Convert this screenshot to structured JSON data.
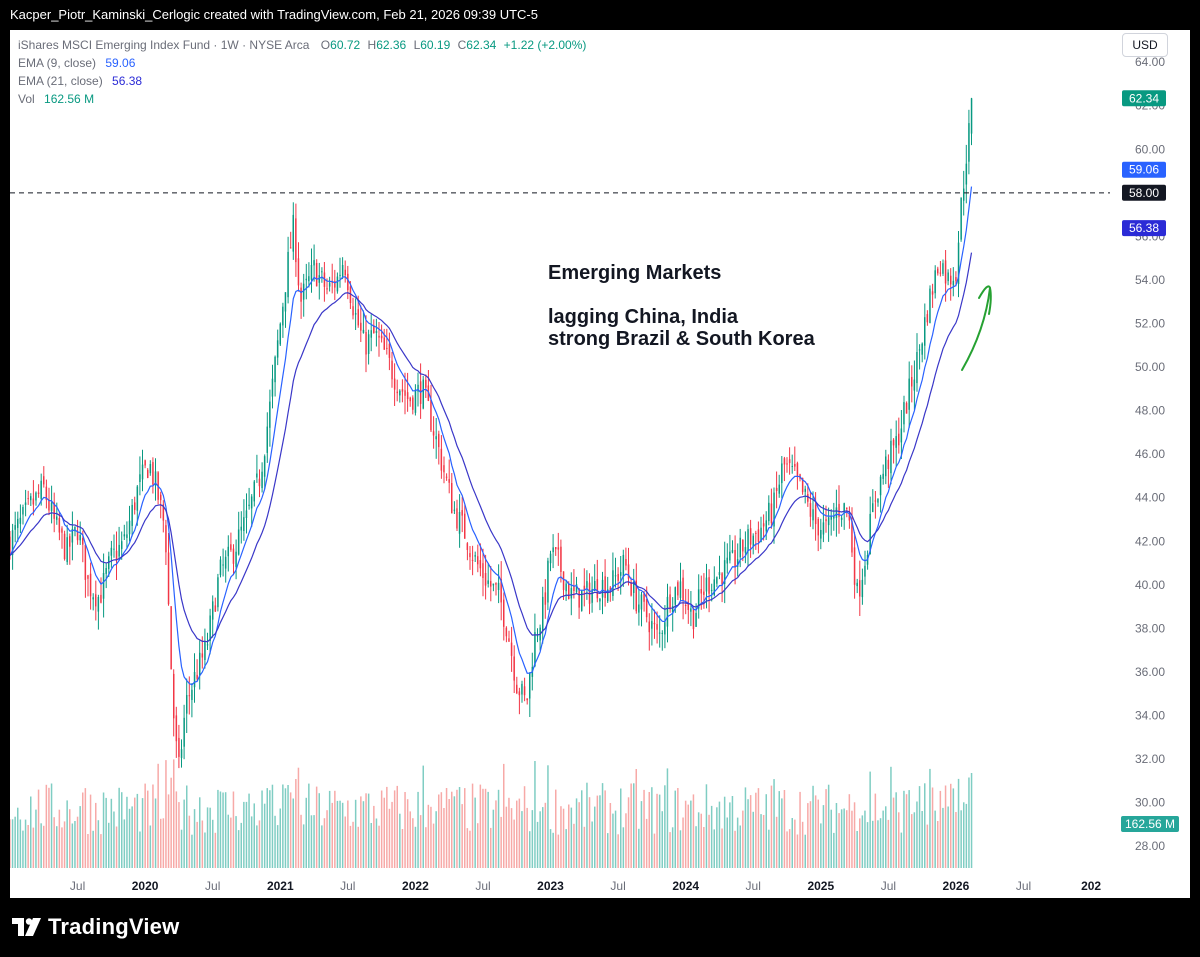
{
  "header": {
    "credit": "Kacper_Piotr_Kaminski_Cerlogic created with TradingView.com, Feb 21, 2026 09:39 UTC-5"
  },
  "legend": {
    "symbol": "iShares MSCI Emerging Index Fund · 1W · NYSE Arca",
    "o_label": "O",
    "o_value": "60.72",
    "h_label": "H",
    "h_value": "62.36",
    "l_label": "L",
    "l_value": "60.19",
    "c_label": "C",
    "c_value": "62.34",
    "change": "+1.22 (+2.00%)",
    "ema9_label": "EMA (9, close)",
    "ema9_value": "59.06",
    "ema21_label": "EMA (21, close)",
    "ema21_value": "56.38",
    "vol_label": "Vol",
    "vol_value": "162.56 M"
  },
  "currency": "USD",
  "annotation": {
    "line1": "Emerging Markets",
    "line2": "lagging China, India",
    "line3": "strong Brazil & South Korea"
  },
  "footer": {
    "brand": "TradingView"
  },
  "colors": {
    "up": "#089981",
    "down": "#f23645",
    "up_vol": "#7fcdc3",
    "down_vol": "#f7a9a7",
    "ema9": "#2962ff",
    "ema21": "#3a37c8",
    "arrow": "#26a132"
  },
  "chart_data": {
    "type": "candlestick",
    "title": "iShares MSCI Emerging Index Fund · 1W · NYSE Arca",
    "ylim": [
      27,
      65.2
    ],
    "y_ticks": [
      "28.00",
      "30.00",
      "32.00",
      "34.00",
      "36.00",
      "38.00",
      "40.00",
      "42.00",
      "44.00",
      "46.00",
      "48.00",
      "50.00",
      "52.00",
      "54.00",
      "56.00",
      "58.00",
      "60.00",
      "62.00",
      "64.00"
    ],
    "x_ticks": [
      {
        "label": "Jul",
        "t": 2019.5,
        "bold": false
      },
      {
        "label": "2020",
        "t": 2020.0,
        "bold": true
      },
      {
        "label": "Jul",
        "t": 2020.5,
        "bold": false
      },
      {
        "label": "2021",
        "t": 2021.0,
        "bold": true
      },
      {
        "label": "Jul",
        "t": 2021.5,
        "bold": false
      },
      {
        "label": "2022",
        "t": 2022.0,
        "bold": true
      },
      {
        "label": "Jul",
        "t": 2022.5,
        "bold": false
      },
      {
        "label": "2023",
        "t": 2023.0,
        "bold": true
      },
      {
        "label": "Jul",
        "t": 2023.5,
        "bold": false
      },
      {
        "label": "2024",
        "t": 2024.0,
        "bold": true
      },
      {
        "label": "Jul",
        "t": 2024.5,
        "bold": false
      },
      {
        "label": "2025",
        "t": 2025.0,
        "bold": true
      },
      {
        "label": "Jul",
        "t": 2025.5,
        "bold": false
      },
      {
        "label": "2026",
        "t": 2026.0,
        "bold": true
      },
      {
        "label": "Jul",
        "t": 2026.5,
        "bold": false
      },
      {
        "label": "202",
        "t": 2027.0,
        "bold": true
      }
    ],
    "xlim": [
      2019.0,
      2027.14
    ],
    "last_bar_t": 2026.13,
    "horizontal_line": 58.0,
    "price_labels": [
      {
        "text": "62.34",
        "value": 62.34,
        "bg": "#089981",
        "fg": "#ffffff"
      },
      {
        "text": "59.06",
        "value": 59.06,
        "bg": "#2962ff",
        "fg": "#ffffff"
      },
      {
        "text": "58.00",
        "value": 58.0,
        "bg": "#131722",
        "fg": "#ffffff"
      },
      {
        "text": "56.38",
        "value": 56.38,
        "bg": "#2b2bd6",
        "fg": "#ffffff"
      }
    ],
    "volume_label": {
      "text": "162.56 M",
      "bg": "#26a69a",
      "fg": "#ffffff"
    },
    "close_path": [
      [
        2019.0,
        42.0
      ],
      [
        2019.15,
        43.6
      ],
      [
        2019.25,
        44.4
      ],
      [
        2019.33,
        42.8
      ],
      [
        2019.42,
        41.5
      ],
      [
        2019.5,
        42.6
      ],
      [
        2019.58,
        40.0
      ],
      [
        2019.66,
        39.4
      ],
      [
        2019.75,
        41.2
      ],
      [
        2019.85,
        42.0
      ],
      [
        2019.95,
        44.5
      ],
      [
        2020.03,
        45.6
      ],
      [
        2020.08,
        44.5
      ],
      [
        2020.15,
        42.5
      ],
      [
        2020.19,
        36.5
      ],
      [
        2020.22,
        33.0
      ],
      [
        2020.25,
        31.5
      ],
      [
        2020.3,
        34.5
      ],
      [
        2020.38,
        36.0
      ],
      [
        2020.45,
        37.0
      ],
      [
        2020.55,
        40.5
      ],
      [
        2020.65,
        41.5
      ],
      [
        2020.75,
        43.0
      ],
      [
        2020.85,
        45.0
      ],
      [
        2020.92,
        48.0
      ],
      [
        2020.98,
        51.0
      ],
      [
        2021.05,
        54.5
      ],
      [
        2021.1,
        56.5
      ],
      [
        2021.15,
        53.0
      ],
      [
        2021.25,
        54.5
      ],
      [
        2021.35,
        53.5
      ],
      [
        2021.42,
        54.0
      ],
      [
        2021.47,
        55.0
      ],
      [
        2021.55,
        52.5
      ],
      [
        2021.62,
        51.0
      ],
      [
        2021.7,
        51.5
      ],
      [
        2021.78,
        50.5
      ],
      [
        2021.85,
        49.5
      ],
      [
        2021.95,
        48.5
      ],
      [
        2022.05,
        49.0
      ],
      [
        2022.12,
        47.5
      ],
      [
        2022.2,
        45.5
      ],
      [
        2022.28,
        43.5
      ],
      [
        2022.36,
        42.5
      ],
      [
        2022.45,
        41.0
      ],
      [
        2022.55,
        40.0
      ],
      [
        2022.62,
        39.5
      ],
      [
        2022.68,
        38.0
      ],
      [
        2022.75,
        35.5
      ],
      [
        2022.82,
        34.5
      ],
      [
        2022.88,
        37.5
      ],
      [
        2022.95,
        39.0
      ],
      [
        2023.0,
        41.5
      ],
      [
        2023.06,
        41.0
      ],
      [
        2023.15,
        39.5
      ],
      [
        2023.25,
        39.5
      ],
      [
        2023.35,
        40.0
      ],
      [
        2023.45,
        40.0
      ],
      [
        2023.55,
        41.0
      ],
      [
        2023.62,
        39.5
      ],
      [
        2023.72,
        38.5
      ],
      [
        2023.8,
        37.5
      ],
      [
        2023.88,
        39.5
      ],
      [
        2023.96,
        40.0
      ],
      [
        2024.05,
        38.5
      ],
      [
        2024.15,
        40.0
      ],
      [
        2024.25,
        40.5
      ],
      [
        2024.35,
        41.0
      ],
      [
        2024.45,
        42.0
      ],
      [
        2024.55,
        42.5
      ],
      [
        2024.65,
        43.5
      ],
      [
        2024.72,
        45.5
      ],
      [
        2024.8,
        45.0
      ],
      [
        2024.88,
        44.0
      ],
      [
        2024.96,
        42.8
      ],
      [
        2025.05,
        42.5
      ],
      [
        2025.12,
        43.5
      ],
      [
        2025.2,
        43.5
      ],
      [
        2025.27,
        39.5
      ],
      [
        2025.32,
        41.0
      ],
      [
        2025.4,
        44.0
      ],
      [
        2025.48,
        45.5
      ],
      [
        2025.56,
        46.5
      ],
      [
        2025.64,
        48.5
      ],
      [
        2025.72,
        50.5
      ],
      [
        2025.8,
        53.0
      ],
      [
        2025.88,
        55.0
      ],
      [
        2025.94,
        54.0
      ],
      [
        2026.0,
        54.5
      ],
      [
        2026.04,
        57.5
      ],
      [
        2026.08,
        60.0
      ],
      [
        2026.13,
        62.34
      ]
    ],
    "series": [
      {
        "name": "EMA (9, close)",
        "last": 59.06
      },
      {
        "name": "EMA (21, close)",
        "last": 56.38
      },
      {
        "name": "Vol",
        "last": "162.56 M"
      }
    ]
  }
}
